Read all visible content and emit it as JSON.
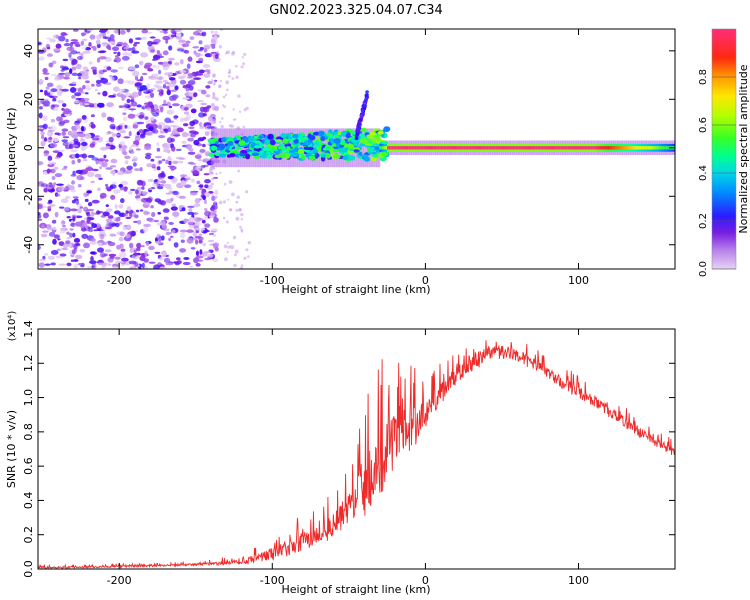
{
  "figure_title": "GN02.2023.325.04.07.C34",
  "chart_data": [
    {
      "type": "heatmap",
      "title": "GN02.2023.325.04.07.C34",
      "xlabel": "Height of straight line (km)",
      "ylabel": "Frequency (Hz)",
      "xlim": [
        -253,
        163
      ],
      "ylim": [
        -50,
        49
      ],
      "xticks": [
        -200,
        -100,
        0,
        100
      ],
      "yticks": [
        -40,
        -20,
        0,
        20,
        40
      ],
      "colorbar": {
        "label": "Normalized spectral amplitude",
        "range": [
          0,
          1
        ],
        "ticks": [
          0.0,
          0.2,
          0.4,
          0.6,
          0.8
        ],
        "colors": [
          "#e8d2f6",
          "#8a2be2",
          "#3a00ff",
          "#00a8ff",
          "#00ffb0",
          "#2cff2c",
          "#c8ff00",
          "#ffee00",
          "#ff8c00",
          "#ff1a1a",
          "#ff2d7a"
        ]
      },
      "features": {
        "noise_region_x": [
          -253,
          -140
        ],
        "signal_line_x": [
          -140,
          163
        ],
        "signal_line_frequency": 0,
        "strong_line_x": [
          -25,
          110
        ],
        "strong_line_amplitude": 1.0,
        "rising_tail_x": [
          -45,
          -38
        ],
        "rising_tail_frequency": [
          5,
          22
        ]
      }
    },
    {
      "type": "line",
      "xlabel": "Height of straight line (km)",
      "ylabel": "SNR (10 * v/v)",
      "exponent_label": "(x10⁴)",
      "xlim": [
        -253,
        163
      ],
      "ylim": [
        0,
        1.4
      ],
      "xticks": [
        -200,
        -100,
        0,
        100
      ],
      "yticks": [
        0.0,
        0.2,
        0.4,
        0.6,
        0.8,
        1.0,
        1.2,
        1.4
      ],
      "series": [
        {
          "name": "SNR",
          "color": "#ee2a2a",
          "x": [
            -253,
            -230,
            -200,
            -170,
            -140,
            -125,
            -110,
            -100,
            -90,
            -80,
            -70,
            -60,
            -50,
            -45,
            -40,
            -35,
            -30,
            -25,
            -20,
            -15,
            -10,
            -5,
            0,
            10,
            20,
            30,
            40,
            50,
            60,
            70,
            80,
            90,
            100,
            110,
            120,
            130,
            140,
            150,
            163
          ],
          "values": [
            0.01,
            0.01,
            0.015,
            0.02,
            0.03,
            0.04,
            0.06,
            0.09,
            0.12,
            0.16,
            0.2,
            0.25,
            0.35,
            0.45,
            0.5,
            0.55,
            0.6,
            0.7,
            0.78,
            0.85,
            0.82,
            0.85,
            0.9,
            1.02,
            1.12,
            1.2,
            1.26,
            1.27,
            1.25,
            1.2,
            1.14,
            1.08,
            1.03,
            0.98,
            0.92,
            0.86,
            0.8,
            0.74,
            0.68
          ],
          "noise_amplitude": [
            0.01,
            0.01,
            0.01,
            0.01,
            0.015,
            0.03,
            0.05,
            0.07,
            0.09,
            0.11,
            0.13,
            0.15,
            0.2,
            0.25,
            0.3,
            0.35,
            0.4,
            0.4,
            0.35,
            0.3,
            0.25,
            0.2,
            0.15,
            0.12,
            0.1,
            0.09,
            0.08,
            0.07,
            0.07,
            0.07,
            0.07,
            0.07,
            0.07,
            0.06,
            0.06,
            0.06,
            0.06,
            0.05,
            0.05
          ]
        }
      ]
    }
  ]
}
